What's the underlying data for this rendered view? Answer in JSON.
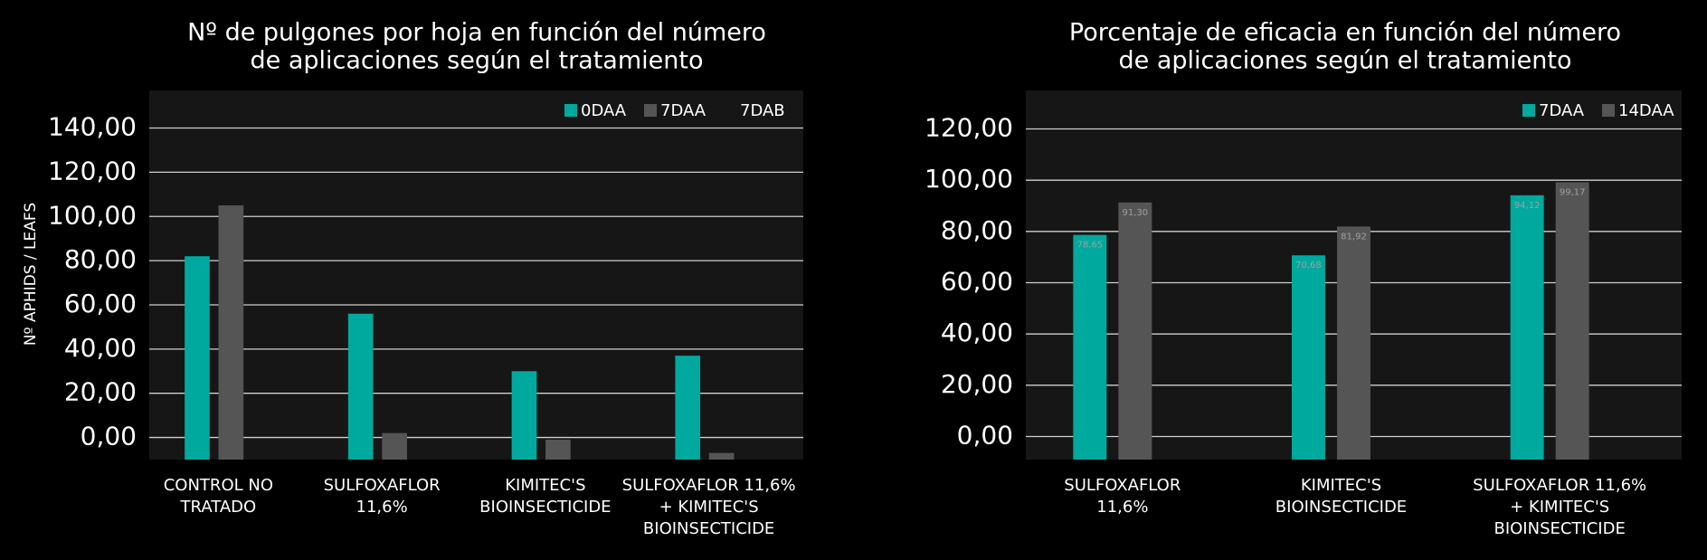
{
  "chart_data": [
    {
      "type": "bar",
      "title": [
        "Nº de pulgones por hoja en función del número",
        "de aplicaciones según el tratamiento"
      ],
      "ylabel": "Nº APHIDS / LEAFS",
      "categories": [
        [
          "CONTROL NO",
          "TRATADO"
        ],
        [
          "SULFOXAFLOR",
          "11,6%"
        ],
        [
          "KIMITEC'S",
          "BIOINSECTICIDE"
        ],
        [
          "SULFOXAFLOR 11,6%",
          "+ KIMITEC'S",
          "BIOINSECTICIDE"
        ]
      ],
      "series": [
        {
          "name": "0DAA",
          "color": "#00a99d",
          "values": [
            82,
            56,
            30,
            37
          ]
        },
        {
          "name": "7DAA",
          "color": "#555555",
          "values": [
            105,
            2,
            -1,
            -7
          ]
        },
        {
          "name": "7DAB",
          "color": "#161616",
          "values": [
            null,
            null,
            null,
            null
          ]
        }
      ],
      "ylim": [
        -10,
        157
      ],
      "yticks": [
        {
          "value": 0,
          "label": "0,00"
        },
        {
          "value": 20,
          "label": "20,00"
        },
        {
          "value": 40,
          "label": "40,00"
        },
        {
          "value": 60,
          "label": "60,00"
        },
        {
          "value": 80,
          "label": "80,00"
        },
        {
          "value": 100,
          "label": "100,00"
        },
        {
          "value": 120,
          "label": "120,00"
        },
        {
          "value": 140,
          "label": "140,00"
        }
      ],
      "grid": true,
      "legend": "top-right"
    },
    {
      "type": "bar",
      "title": [
        "Porcentaje de eficacia en función del número",
        "de aplicaciones según el tratamiento"
      ],
      "categories": [
        [
          "SULFOXAFLOR",
          "11,6%"
        ],
        [
          "KIMITEC'S",
          "BIOINSECTICIDE"
        ],
        [
          "SULFOXAFLOR 11,6%",
          "+ KIMITEC'S",
          "BIOINSECTICIDE"
        ]
      ],
      "series": [
        {
          "name": "7DAA",
          "color": "#00a99d",
          "values": [
            78.65,
            70.68,
            94.12
          ],
          "value_labels": [
            "78,65",
            "70,68",
            "94,12"
          ]
        },
        {
          "name": "14DAA",
          "color": "#555555",
          "values": [
            91.3,
            81.92,
            99.17
          ],
          "value_labels": [
            "91,30",
            "81,92",
            "99,17"
          ]
        }
      ],
      "ylim": [
        -9,
        135
      ],
      "yticks": [
        {
          "value": 0,
          "label": "0,00"
        },
        {
          "value": 20,
          "label": "20,00"
        },
        {
          "value": 40,
          "label": "40,00"
        },
        {
          "value": 60,
          "label": "60,00"
        },
        {
          "value": 80,
          "label": "80,00"
        },
        {
          "value": 100,
          "label": "100,00"
        },
        {
          "value": 120,
          "label": "120,00"
        }
      ],
      "grid": true,
      "legend": "top-right"
    }
  ]
}
